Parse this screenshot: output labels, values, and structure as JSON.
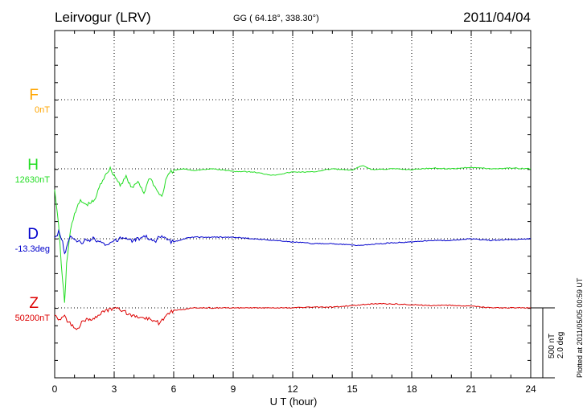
{
  "header": {
    "station": "Leirvogur (LRV)",
    "coords": "GG ( 64.18°, 338.30°)",
    "date": "2011/04/04"
  },
  "components": [
    {
      "key": "F",
      "letter": "F",
      "base": "0nT",
      "color": "#FFA500"
    },
    {
      "key": "H",
      "letter": "H",
      "base": "12630nT",
      "color": "#22DD22"
    },
    {
      "key": "D",
      "letter": "D",
      "base": "-13.3deg",
      "color": "#0000CC"
    },
    {
      "key": "Z",
      "letter": "Z",
      "base": "50200nT",
      "color": "#DD0000"
    }
  ],
  "scale": {
    "nT": "500 nT",
    "deg": "2.0 deg"
  },
  "footer": {
    "plotted": "Plotted at 2011/05/05 00:59 UT"
  },
  "chart_data": {
    "type": "line",
    "title": "Leirvogur (LRV)  GG ( 64.18°, 338.30°)  2011/04/04",
    "xlabel": "U T (hour)",
    "ylabel": "",
    "xlim": [
      0,
      24
    ],
    "xticks": [
      0,
      3,
      6,
      9,
      12,
      15,
      18,
      21,
      24
    ],
    "grid": true,
    "units_per_band": "500 nT / 2.0 deg",
    "series": [
      {
        "name": "H",
        "x": [
          0,
          0.2,
          0.4,
          0.5,
          0.6,
          0.8,
          1.0,
          1.3,
          1.6,
          2.0,
          2.3,
          2.6,
          2.8,
          3.0,
          3.3,
          3.6,
          3.9,
          4.2,
          4.5,
          4.8,
          5.1,
          5.4,
          5.6,
          5.8,
          6.0,
          6.5,
          7.0,
          8.0,
          9.0,
          10.0,
          11.0,
          12.0,
          13.0,
          14.0,
          15.0,
          15.5,
          16.0,
          17.0,
          18.0,
          19.0,
          20.0,
          21.0,
          22.0,
          23.0,
          24.0
        ],
        "values": [
          25,
          70,
          140,
          165,
          120,
          75,
          55,
          40,
          45,
          40,
          20,
          5,
          0,
          8,
          20,
          10,
          25,
          15,
          30,
          10,
          25,
          35,
          15,
          5,
          2,
          0,
          2,
          0,
          3,
          4,
          8,
          4,
          4,
          0,
          2,
          -4,
          1,
          0,
          1,
          -1,
          0,
          -2,
          0,
          -1,
          0
        ]
      },
      {
        "name": "D",
        "x": [
          0,
          0.2,
          0.4,
          0.5,
          0.6,
          0.8,
          1.0,
          1.3,
          1.6,
          2.0,
          2.3,
          2.6,
          2.8,
          3.0,
          3.3,
          3.6,
          3.9,
          4.2,
          4.5,
          4.8,
          5.1,
          5.4,
          5.6,
          5.8,
          6.0,
          6.5,
          7.0,
          8.0,
          9.0,
          10.0,
          11.0,
          12.0,
          13.0,
          14.0,
          15.0,
          15.5,
          16.0,
          17.0,
          18.0,
          19.0,
          20.0,
          21.0,
          22.0,
          23.0,
          24.0
        ],
        "values": [
          0,
          -8,
          5,
          20,
          10,
          -5,
          0,
          5,
          2,
          0,
          4,
          8,
          6,
          3,
          0,
          -2,
          2,
          0,
          -3,
          -1,
          2,
          -5,
          0,
          3,
          4,
          0,
          -2,
          -2,
          -2,
          0,
          2,
          4,
          6,
          6,
          8,
          8,
          7,
          5,
          4,
          2,
          2,
          0,
          2,
          1,
          0
        ]
      },
      {
        "name": "Z",
        "x": [
          0,
          0.3,
          0.5,
          0.7,
          0.9,
          1.1,
          1.3,
          1.6,
          2.0,
          2.5,
          3.0,
          3.5,
          4.0,
          4.5,
          5.0,
          5.3,
          5.6,
          6.0,
          6.5,
          7.0,
          8.0,
          9.0,
          10.0,
          11.0,
          12.0,
          13.0,
          14.0,
          15.0,
          15.5,
          16.0,
          17.0,
          18.0,
          19.0,
          20.0,
          21.0,
          22.0,
          23.0,
          24.0
        ],
        "values": [
          10,
          15,
          10,
          18,
          22,
          28,
          20,
          15,
          12,
          5,
          0,
          5,
          10,
          12,
          15,
          20,
          10,
          3,
          2,
          0,
          0,
          0,
          0,
          0,
          0,
          -1,
          -1,
          -3,
          -4,
          -5,
          -5,
          -4,
          -3,
          -3,
          -2,
          0,
          0,
          0
        ]
      }
    ]
  }
}
